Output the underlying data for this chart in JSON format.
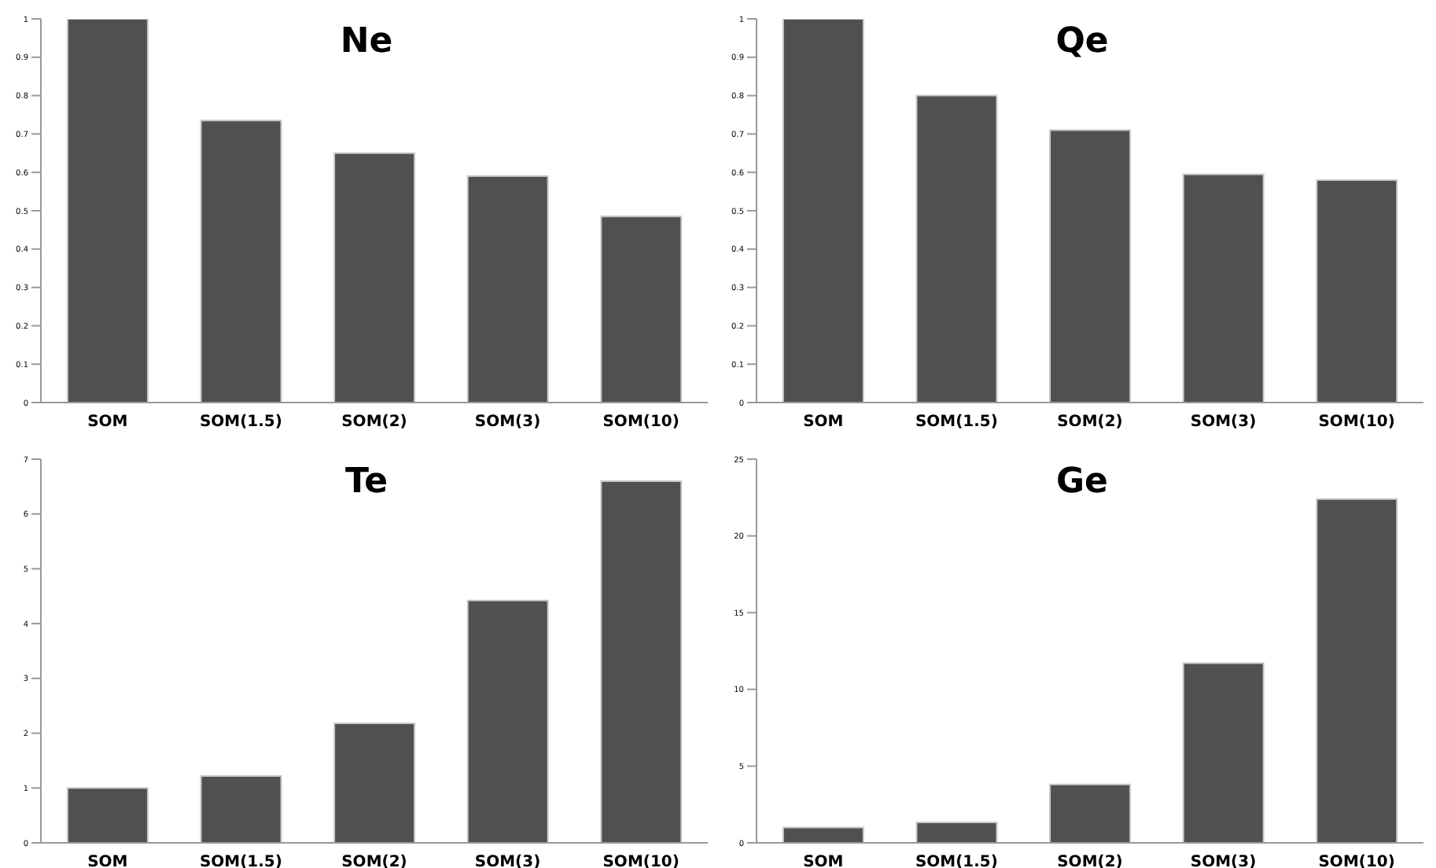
{
  "chart_data": [
    {
      "type": "bar",
      "title": "Ne",
      "categories": [
        "SOM",
        "SOM(1.5)",
        "SOM(2)",
        "SOM(3)",
        "SOM(10)"
      ],
      "values": [
        1,
        0.735,
        0.65,
        0.59,
        0.485
      ],
      "color": "#505050",
      "ylim": [
        0,
        1
      ],
      "yticks": [
        0,
        0.1,
        0.2,
        0.3,
        0.4,
        0.5,
        0.6,
        0.7,
        0.8,
        0.9,
        1
      ],
      "grid": false
    },
    {
      "type": "bar",
      "title": "Qe",
      "categories": [
        "SOM",
        "SOM(1.5)",
        "SOM(2)",
        "SOM(3)",
        "SOM(10)"
      ],
      "values": [
        1,
        0.8,
        0.71,
        0.595,
        0.58
      ],
      "color": "#505050",
      "ylim": [
        0,
        1
      ],
      "yticks": [
        0,
        0.1,
        0.2,
        0.3,
        0.4,
        0.5,
        0.6,
        0.7,
        0.8,
        0.9,
        1
      ],
      "grid": false
    },
    {
      "type": "bar",
      "title": "Te",
      "categories": [
        "SOM",
        "SOM(1.5)",
        "SOM(2)",
        "SOM(3)",
        "SOM(10)"
      ],
      "values": [
        1,
        1.22,
        2.18,
        4.42,
        6.6
      ],
      "color": "#505050",
      "ylim": [
        0,
        7
      ],
      "yticks": [
        0,
        1,
        2,
        3,
        4,
        5,
        6,
        7
      ],
      "grid": false
    },
    {
      "type": "bar",
      "title": "Ge",
      "categories": [
        "SOM",
        "SOM(1.5)",
        "SOM(2)",
        "SOM(3)",
        "SOM(10)"
      ],
      "values": [
        1,
        1.33,
        3.8,
        11.7,
        22.4
      ],
      "color": "#505050",
      "ylim": [
        0,
        25
      ],
      "yticks": [
        0,
        5,
        10,
        15,
        20,
        25
      ],
      "grid": false
    }
  ]
}
